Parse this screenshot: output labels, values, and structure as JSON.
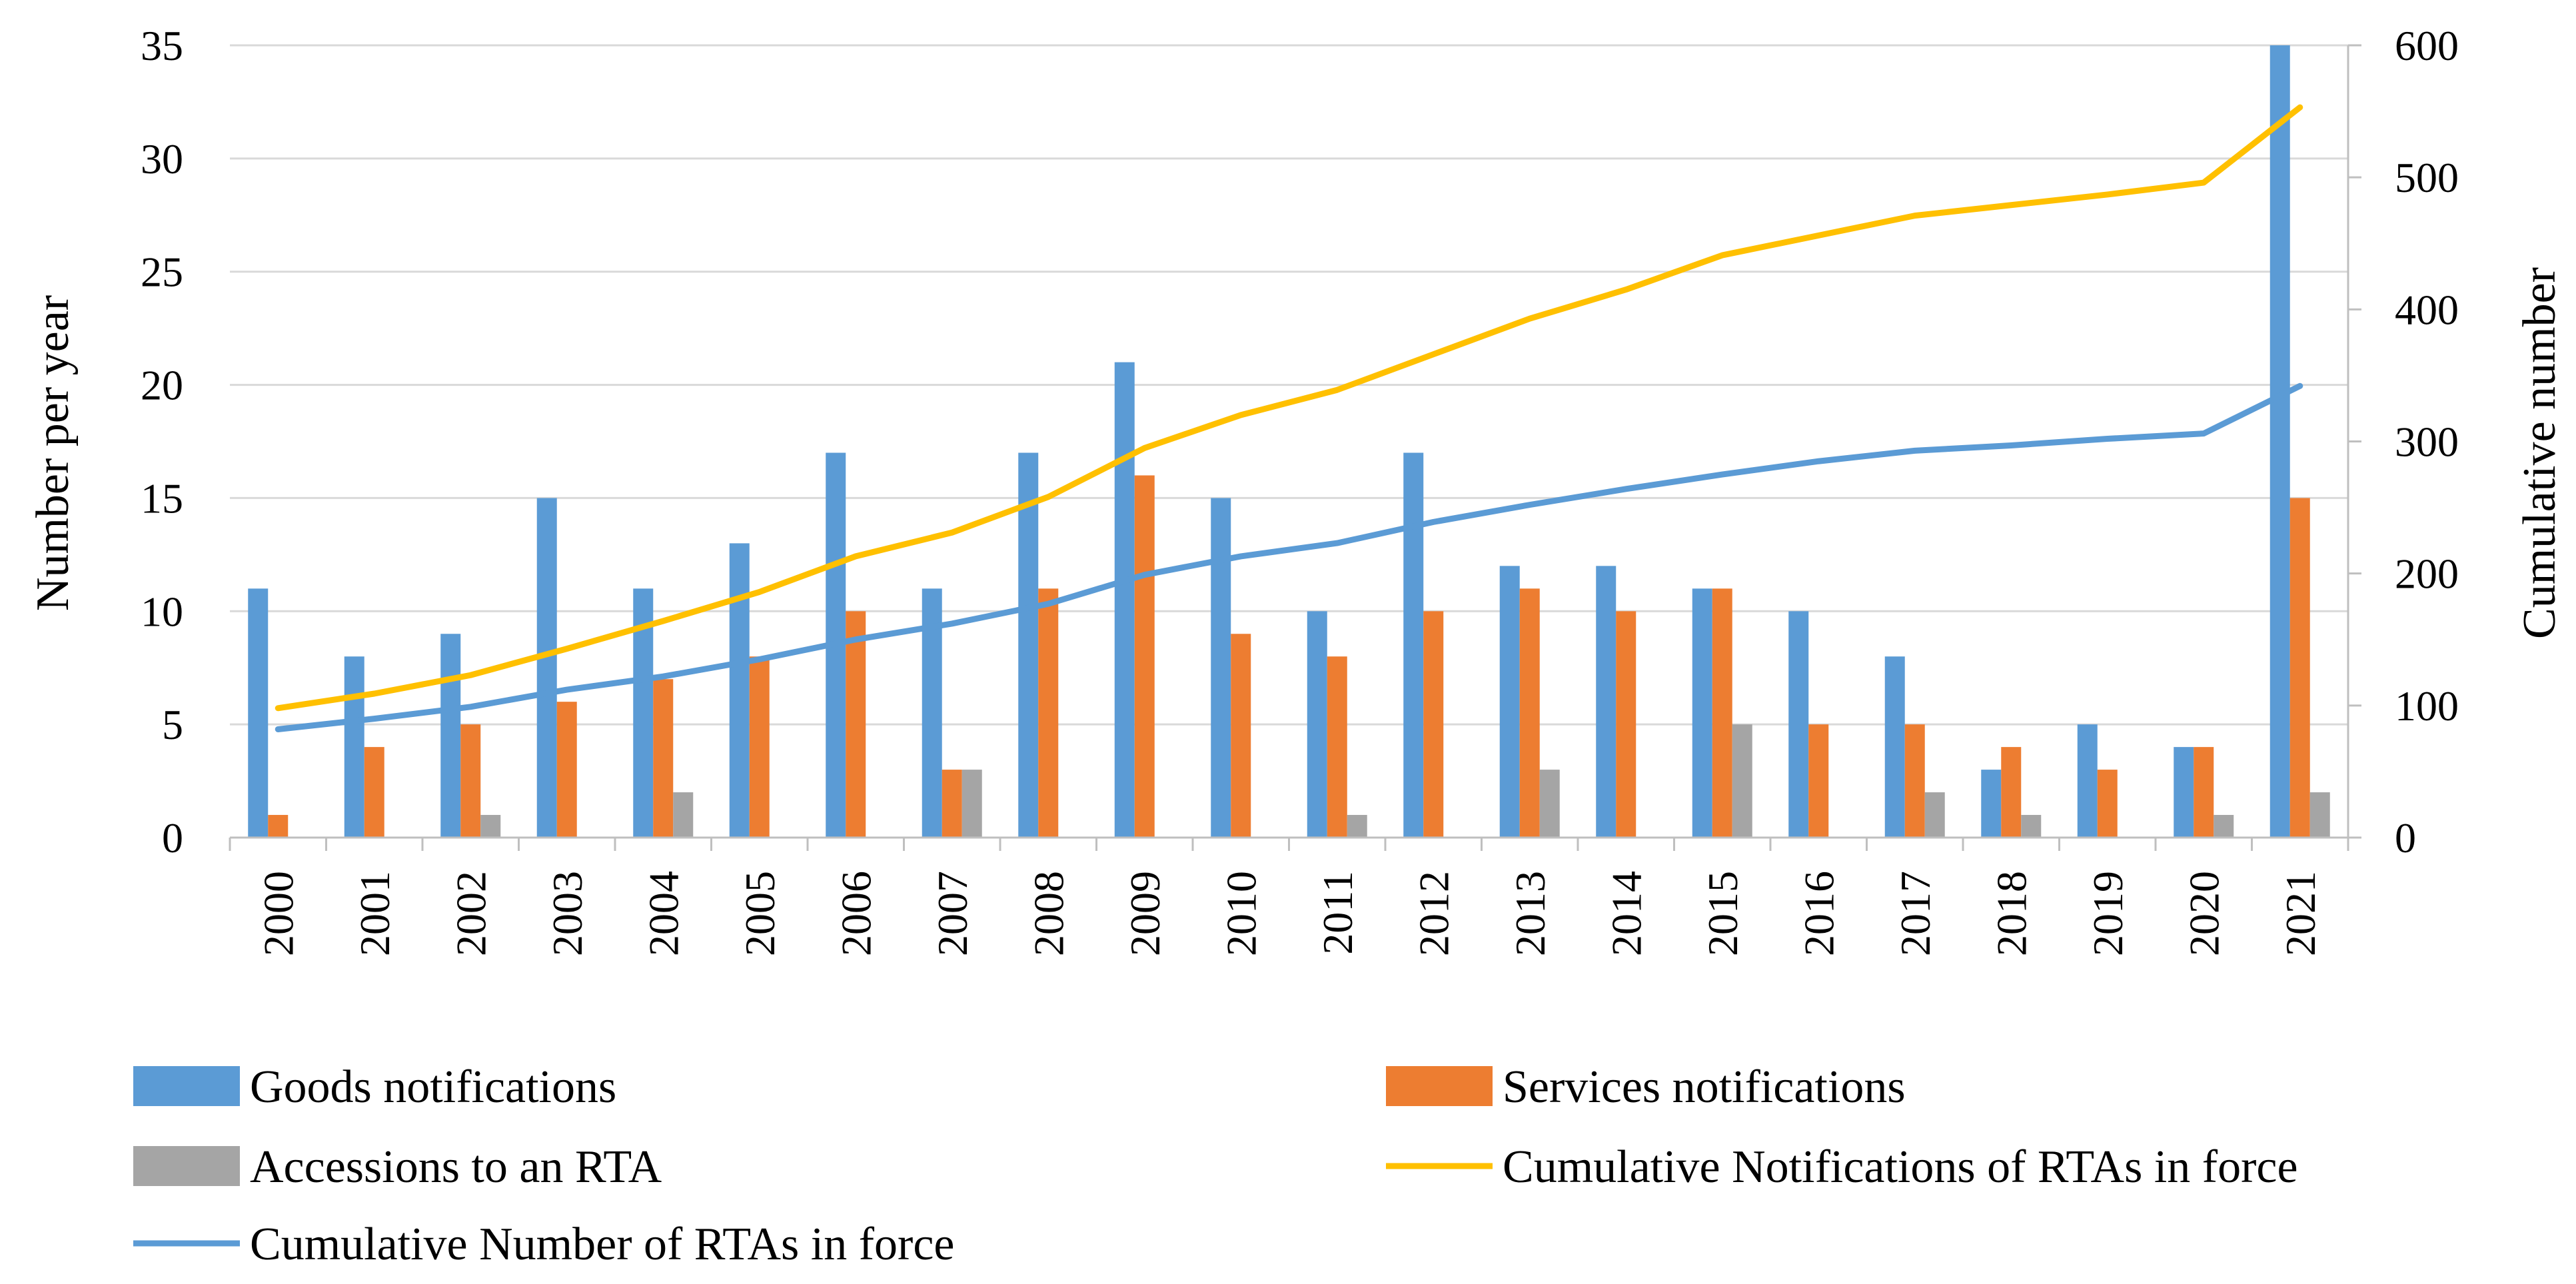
{
  "chart_data": {
    "type": "bar",
    "title": "",
    "xlabel": "",
    "ylabel": "Number per year",
    "ylabel_right": "Cumulative number",
    "ylim": [
      0,
      35
    ],
    "ylim_right": [
      0,
      600
    ],
    "yticks": [
      "0",
      "5",
      "10",
      "15",
      "20",
      "25",
      "30",
      "35"
    ],
    "yticks_right": [
      "0",
      "100",
      "200",
      "300",
      "400",
      "500",
      "600"
    ],
    "grid": true,
    "legend_position": "bottom",
    "categories": [
      "2000",
      "2001",
      "2002",
      "2003",
      "2004",
      "2005",
      "2006",
      "2007",
      "2008",
      "2009",
      "2010",
      "2011",
      "2012",
      "2013",
      "2014",
      "2015",
      "2016",
      "2017",
      "2018",
      "2019",
      "2020",
      "2021"
    ],
    "series": [
      {
        "name": "Goods notifications",
        "type": "bar",
        "axis": "left",
        "color": "#5B9BD5",
        "values": [
          11,
          8,
          9,
          15,
          11,
          13,
          17,
          11,
          17,
          21,
          15,
          10,
          17,
          12,
          12,
          11,
          10,
          8,
          3,
          5,
          4,
          35
        ]
      },
      {
        "name": "Services notifications",
        "type": "bar",
        "axis": "left",
        "color": "#ED7D31",
        "values": [
          1,
          4,
          5,
          6,
          7,
          8,
          10,
          3,
          11,
          16,
          9,
          8,
          10,
          11,
          10,
          11,
          5,
          5,
          4,
          3,
          4,
          15
        ]
      },
      {
        "name": "Accessions to an RTA",
        "type": "bar",
        "axis": "left",
        "color": "#A5A5A5",
        "values": [
          0,
          0,
          1,
          0,
          2,
          0,
          0,
          3,
          0,
          0,
          0,
          1,
          0,
          3,
          0,
          5,
          0,
          2,
          1,
          0,
          1,
          2
        ]
      },
      {
        "name": "Cumulative Notifications of RTAs in force",
        "type": "line",
        "axis": "right",
        "color": "#FFC000",
        "values": [
          98,
          109,
          123,
          143,
          164,
          186,
          213,
          231,
          258,
          295,
          320,
          339,
          366,
          393,
          415,
          441,
          456,
          471,
          479,
          487,
          496,
          553
        ]
      },
      {
        "name": "Cumulative Number of RTAs in force",
        "type": "line",
        "axis": "right",
        "color": "#5B9BD5",
        "values": [
          82,
          90,
          99,
          112,
          122,
          135,
          150,
          162,
          177,
          199,
          213,
          223,
          239,
          252,
          264,
          275,
          285,
          293,
          297,
          302,
          306,
          342
        ]
      }
    ]
  }
}
